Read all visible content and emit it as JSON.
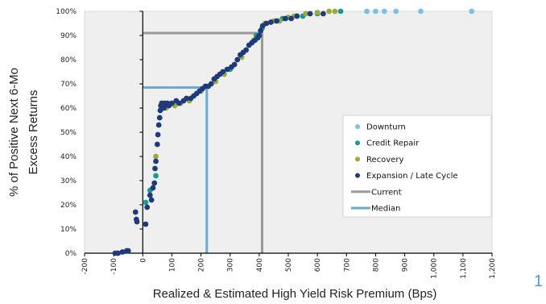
{
  "page_number": "1",
  "chart_data": {
    "type": "scatter",
    "title": "",
    "xlabel": "Realized & Estimated High Yield Risk Premium (Bps)",
    "ylabel": [
      "% of Positive Next 6-Mo",
      "Excess Returns"
    ],
    "xlim": [
      -200,
      1200
    ],
    "ylim": [
      0,
      100
    ],
    "x_tick_labels": [
      "-200",
      "-100",
      "0",
      "100",
      "200",
      "300",
      "400",
      "500",
      "600",
      "700",
      "800",
      "900",
      "1,000",
      "1,100",
      "1,200"
    ],
    "x_tick_values": [
      -200,
      -100,
      0,
      100,
      200,
      300,
      400,
      500,
      600,
      700,
      800,
      900,
      1000,
      1100,
      1200
    ],
    "y_tick_labels": [
      "0%",
      "10%",
      "20%",
      "30%",
      "40%",
      "50%",
      "60%",
      "70%",
      "80%",
      "90%",
      "100%"
    ],
    "y_tick_values": [
      0,
      10,
      20,
      30,
      40,
      50,
      60,
      70,
      80,
      90,
      100
    ],
    "grid": false,
    "legend_position": "right-center",
    "colors": {
      "Downturn": "#7fbfe6",
      "Credit Repair": "#1a9a8a",
      "Recovery": "#9aaa3a",
      "Expansion / Late Cycle": "#1f3a7a",
      "Current": "#999999",
      "Median": "#6aa9d2"
    },
    "reference_lines": [
      {
        "name": "Current",
        "x": 410,
        "y": 91
      },
      {
        "name": "Median",
        "x": 220,
        "y": 68.5
      }
    ],
    "series": [
      {
        "name": "Downturn",
        "points": [
          [
            770,
            100
          ],
          [
            800,
            100
          ],
          [
            830,
            100
          ],
          [
            870,
            100
          ],
          [
            955,
            100
          ],
          [
            1130,
            100
          ]
        ]
      },
      {
        "name": "Credit Repair",
        "points": [
          [
            10,
            21
          ],
          [
            25,
            26
          ],
          [
            45,
            32
          ],
          [
            410,
            93
          ],
          [
            480,
            97
          ],
          [
            550,
            98
          ],
          [
            600,
            99
          ],
          [
            680,
            100
          ],
          [
            390,
            90
          ],
          [
            300,
            76
          ]
        ]
      },
      {
        "name": "Recovery",
        "points": [
          [
            45,
            40
          ],
          [
            80,
            60
          ],
          [
            110,
            61
          ],
          [
            130,
            62
          ],
          [
            160,
            63
          ],
          [
            200,
            67
          ],
          [
            250,
            71
          ],
          [
            280,
            74
          ],
          [
            340,
            81
          ],
          [
            380,
            88
          ],
          [
            420,
            95
          ],
          [
            450,
            96
          ],
          [
            500,
            97.5
          ],
          [
            520,
            98
          ],
          [
            560,
            99
          ],
          [
            600,
            99.5
          ],
          [
            640,
            100
          ],
          [
            660,
            100
          ],
          [
            470,
            96
          ]
        ]
      },
      {
        "name": "Expansion / Late Cycle",
        "points": [
          [
            -95,
            0
          ],
          [
            -85,
            0
          ],
          [
            -70,
            0.5
          ],
          [
            -55,
            1
          ],
          [
            -50,
            1
          ],
          [
            -25,
            17
          ],
          [
            -22,
            14
          ],
          [
            -20,
            13
          ],
          [
            10,
            12
          ],
          [
            15,
            19
          ],
          [
            25,
            24
          ],
          [
            30,
            22
          ],
          [
            35,
            27
          ],
          [
            40,
            29
          ],
          [
            42,
            35
          ],
          [
            45,
            38
          ],
          [
            50,
            45
          ],
          [
            52,
            49
          ],
          [
            55,
            53
          ],
          [
            58,
            56
          ],
          [
            60,
            59
          ],
          [
            62,
            61
          ],
          [
            65,
            62
          ],
          [
            70,
            61
          ],
          [
            72,
            60
          ],
          [
            75,
            62
          ],
          [
            78,
            61
          ],
          [
            85,
            62
          ],
          [
            90,
            61
          ],
          [
            100,
            62
          ],
          [
            115,
            63
          ],
          [
            125,
            62
          ],
          [
            140,
            63
          ],
          [
            150,
            64
          ],
          [
            165,
            64
          ],
          [
            175,
            65
          ],
          [
            185,
            66
          ],
          [
            195,
            67
          ],
          [
            205,
            68
          ],
          [
            215,
            69
          ],
          [
            225,
            69
          ],
          [
            235,
            70
          ],
          [
            245,
            72
          ],
          [
            255,
            73
          ],
          [
            265,
            74
          ],
          [
            275,
            75
          ],
          [
            290,
            76
          ],
          [
            305,
            77
          ],
          [
            315,
            78
          ],
          [
            325,
            80
          ],
          [
            335,
            82
          ],
          [
            345,
            83
          ],
          [
            355,
            84
          ],
          [
            365,
            86
          ],
          [
            375,
            87
          ],
          [
            385,
            88
          ],
          [
            395,
            89
          ],
          [
            400,
            90
          ],
          [
            405,
            92
          ],
          [
            412,
            94
          ],
          [
            425,
            95
          ],
          [
            440,
            95.5
          ],
          [
            460,
            96
          ],
          [
            490,
            97
          ],
          [
            510,
            97
          ],
          [
            530,
            98
          ],
          [
            575,
            99
          ],
          [
            620,
            99
          ]
        ]
      }
    ]
  }
}
